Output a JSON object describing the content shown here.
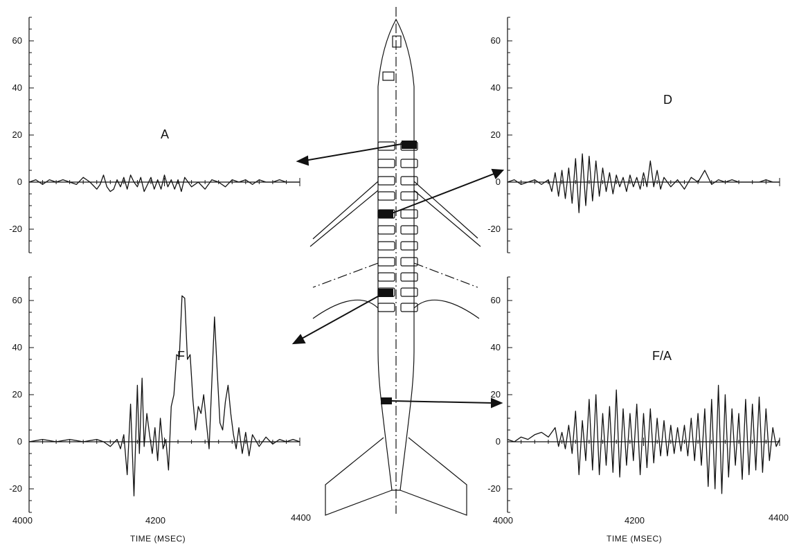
{
  "figure": {
    "xlabel_left": "TIME (MSEC)",
    "xlabel_right": "TIME (MSEC)",
    "x_tick_labels_left": [
      "4000",
      "4200",
      "4400"
    ],
    "x_tick_labels_right": [
      "4000",
      "4200",
      "4400"
    ]
  },
  "colors": {
    "ink": "#111111",
    "background": "#ffffff"
  },
  "chart_data": [
    {
      "type": "line",
      "panel": "A",
      "title": "A",
      "xlim": [
        4000,
        4400
      ],
      "ylim": [
        -30,
        70
      ],
      "yticks": [
        -20,
        0,
        20,
        40,
        60
      ],
      "series": [
        {
          "x": [
            4000,
            4010,
            4020,
            4030,
            4040,
            4050,
            4060,
            4070,
            4080,
            4090,
            4100,
            4105,
            4110,
            4115,
            4120,
            4125,
            4130,
            4135,
            4140,
            4145,
            4150,
            4155,
            4160,
            4165,
            4170,
            4175,
            4180,
            4185,
            4190,
            4195,
            4200,
            4205,
            4210,
            4215,
            4220,
            4225,
            4230,
            4240,
            4250,
            4260,
            4270,
            4280,
            4290,
            4300,
            4310,
            4320,
            4330,
            4340,
            4350,
            4360,
            4370,
            4380,
            4390,
            4400
          ],
          "y": [
            0,
            1,
            -1,
            1,
            0,
            1,
            0,
            -1,
            2,
            0,
            -3,
            -1,
            3,
            -2,
            -4,
            -3,
            1,
            -2,
            2,
            -3,
            3,
            0,
            -2,
            2,
            -4,
            -1,
            2,
            -3,
            1,
            -3,
            3,
            -2,
            1,
            -3,
            1,
            -4,
            2,
            -2,
            0,
            -3,
            1,
            0,
            -2,
            1,
            0,
            1,
            -1,
            1,
            0,
            0,
            1,
            0,
            0,
            0
          ]
        }
      ]
    },
    {
      "type": "line",
      "panel": "D",
      "title": "D",
      "xlim": [
        4000,
        4400
      ],
      "ylim": [
        -30,
        70
      ],
      "yticks": [
        -20,
        0,
        20,
        40,
        60
      ],
      "series": [
        {
          "x": [
            4000,
            4010,
            4020,
            4030,
            4040,
            4050,
            4060,
            4065,
            4070,
            4075,
            4080,
            4085,
            4090,
            4095,
            4100,
            4105,
            4110,
            4115,
            4120,
            4125,
            4130,
            4135,
            4140,
            4145,
            4150,
            4155,
            4160,
            4165,
            4170,
            4175,
            4180,
            4185,
            4190,
            4195,
            4200,
            4205,
            4210,
            4215,
            4220,
            4225,
            4230,
            4240,
            4250,
            4260,
            4270,
            4280,
            4290,
            4300,
            4310,
            4320,
            4330,
            4340,
            4350,
            4360,
            4370,
            4380,
            4390,
            4400
          ],
          "y": [
            0,
            1,
            -1,
            0,
            1,
            -1,
            1,
            -4,
            4,
            -6,
            5,
            -7,
            6,
            -9,
            10,
            -13,
            12,
            -10,
            11,
            -8,
            9,
            -6,
            6,
            -4,
            4,
            -5,
            3,
            -2,
            2,
            -4,
            3,
            -2,
            2,
            -3,
            4,
            -2,
            9,
            -2,
            5,
            -3,
            2,
            -2,
            1,
            -3,
            2,
            0,
            5,
            -1,
            1,
            0,
            1,
            0,
            0,
            0,
            0,
            1,
            0,
            0
          ]
        }
      ]
    },
    {
      "type": "line",
      "panel": "F",
      "title": "F",
      "xlim": [
        4000,
        4400
      ],
      "ylim": [
        -30,
        70
      ],
      "yticks": [
        -20,
        0,
        20,
        40,
        60
      ],
      "series": [
        {
          "x": [
            4000,
            4020,
            4040,
            4060,
            4080,
            4100,
            4110,
            4120,
            4130,
            4135,
            4140,
            4145,
            4150,
            4155,
            4160,
            4163,
            4167,
            4170,
            4174,
            4178,
            4182,
            4186,
            4190,
            4194,
            4198,
            4202,
            4206,
            4210,
            4214,
            4218,
            4222,
            4226,
            4230,
            4234,
            4238,
            4242,
            4246,
            4250,
            4254,
            4258,
            4262,
            4266,
            4270,
            4274,
            4278,
            4282,
            4286,
            4290,
            4294,
            4298,
            4302,
            4306,
            4310,
            4315,
            4320,
            4325,
            4330,
            4340,
            4350,
            4360,
            4370,
            4380,
            4390,
            4400
          ],
          "y": [
            0,
            1,
            0,
            1,
            0,
            1,
            0,
            -2,
            1,
            -3,
            3,
            -14,
            16,
            -23,
            24,
            -5,
            27,
            -2,
            12,
            3,
            -5,
            6,
            -8,
            10,
            -3,
            1,
            -12,
            15,
            20,
            37,
            36,
            62,
            61,
            35,
            37,
            18,
            5,
            15,
            12,
            20,
            8,
            -3,
            25,
            53,
            30,
            8,
            5,
            17,
            24,
            12,
            3,
            -3,
            6,
            -5,
            4,
            -6,
            3,
            -2,
            2,
            -1,
            1,
            0,
            1,
            0
          ]
        }
      ]
    },
    {
      "type": "line",
      "panel": "F/A",
      "title": "F/A",
      "xlim": [
        4000,
        4400
      ],
      "ylim": [
        -30,
        70
      ],
      "yticks": [
        -20,
        0,
        20,
        40,
        60
      ],
      "series": [
        {
          "x": [
            4000,
            4010,
            4020,
            4030,
            4040,
            4050,
            4060,
            4070,
            4075,
            4080,
            4085,
            4090,
            4095,
            4100,
            4105,
            4110,
            4115,
            4120,
            4125,
            4130,
            4135,
            4140,
            4145,
            4150,
            4155,
            4160,
            4165,
            4170,
            4175,
            4180,
            4185,
            4190,
            4195,
            4200,
            4205,
            4210,
            4215,
            4220,
            4225,
            4230,
            4235,
            4240,
            4245,
            4250,
            4255,
            4260,
            4265,
            4270,
            4275,
            4280,
            4285,
            4290,
            4295,
            4300,
            4305,
            4310,
            4315,
            4320,
            4325,
            4330,
            4335,
            4340,
            4345,
            4350,
            4355,
            4360,
            4365,
            4370,
            4375,
            4380,
            4385,
            4390,
            4395,
            4400
          ],
          "y": [
            1,
            0,
            2,
            1,
            3,
            4,
            2,
            6,
            -2,
            4,
            -3,
            7,
            -5,
            13,
            -14,
            9,
            -8,
            18,
            -12,
            20,
            -14,
            12,
            -10,
            15,
            -13,
            22,
            -15,
            14,
            -10,
            12,
            -8,
            16,
            -14,
            12,
            -11,
            14,
            -9,
            10,
            -6,
            9,
            -6,
            7,
            -5,
            6,
            -4,
            7,
            -6,
            10,
            -8,
            12,
            -10,
            14,
            -19,
            18,
            -20,
            24,
            -22,
            20,
            -15,
            14,
            -10,
            12,
            -16,
            18,
            -14,
            16,
            -12,
            19,
            -13,
            14,
            -8,
            6,
            -2,
            1
          ]
        }
      ]
    }
  ]
}
